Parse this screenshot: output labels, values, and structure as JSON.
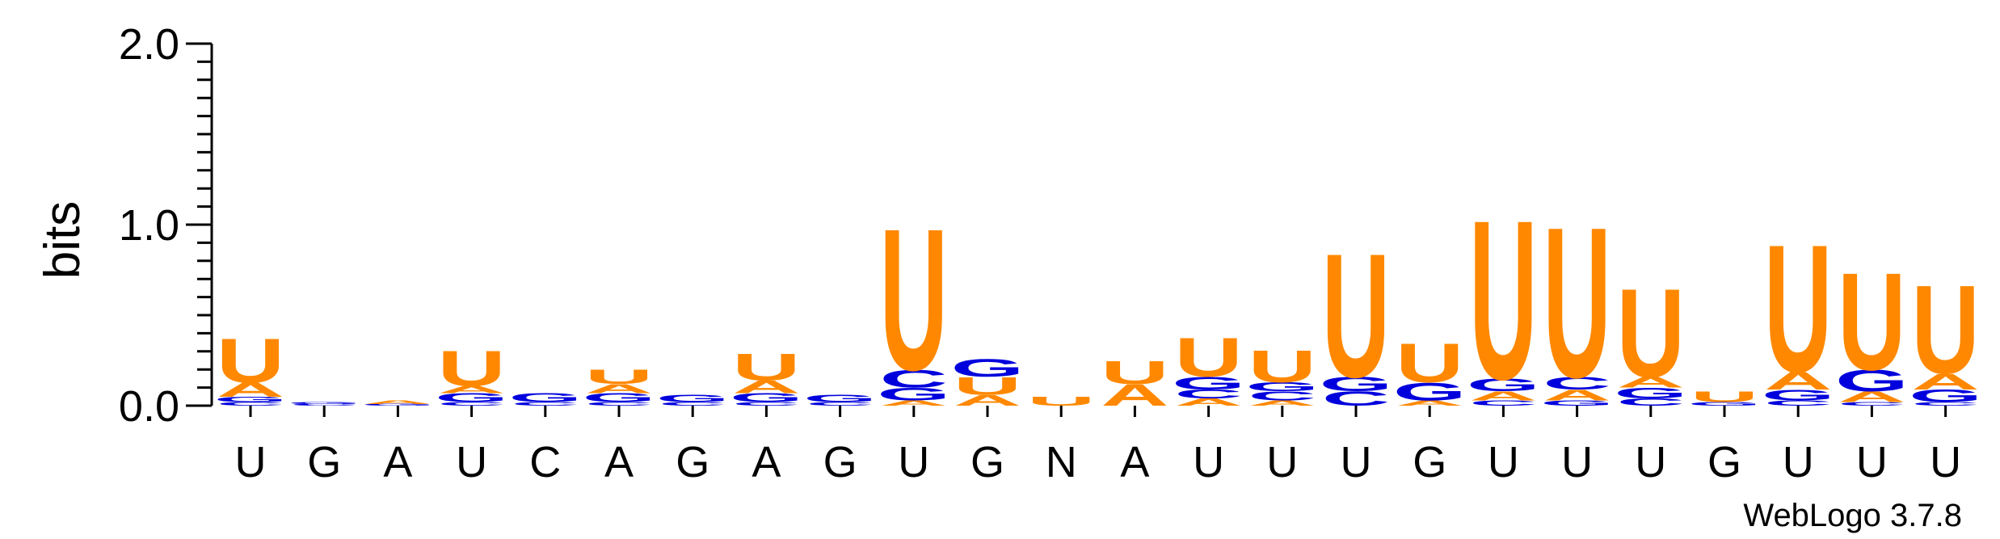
{
  "chart_data": {
    "type": "sequence-logo",
    "ylabel": "bits",
    "ylim": [
      0,
      2
    ],
    "yticks": [
      "0.0",
      "1.0",
      "2.0"
    ],
    "footer": "WebLogo 3.7.8",
    "colors": {
      "U": "#ff8800",
      "A": "#ff8800",
      "G": "#0000dd",
      "C": "#0000dd",
      "N": "#ff8800"
    },
    "positions": [
      {
        "label": "U",
        "stack": [
          [
            "C",
            0.02
          ],
          [
            "G",
            0.03
          ],
          [
            "A",
            0.08
          ],
          [
            "U",
            0.25
          ]
        ]
      },
      {
        "label": "G",
        "stack": [
          [
            "C",
            0.01
          ],
          [
            "G",
            0.01
          ]
        ]
      },
      {
        "label": "A",
        "stack": [
          [
            "G",
            0.01
          ],
          [
            "A",
            0.02
          ]
        ]
      },
      {
        "label": "U",
        "stack": [
          [
            "C",
            0.02
          ],
          [
            "G",
            0.05
          ],
          [
            "A",
            0.04
          ],
          [
            "U",
            0.2
          ]
        ]
      },
      {
        "label": "C",
        "stack": [
          [
            "C",
            0.02
          ],
          [
            "G",
            0.05
          ]
        ]
      },
      {
        "label": "A",
        "stack": [
          [
            "C",
            0.02
          ],
          [
            "G",
            0.05
          ],
          [
            "A",
            0.05
          ],
          [
            "U",
            0.08
          ]
        ]
      },
      {
        "label": "G",
        "stack": [
          [
            "C",
            0.02
          ],
          [
            "G",
            0.04
          ]
        ]
      },
      {
        "label": "A",
        "stack": [
          [
            "C",
            0.02
          ],
          [
            "G",
            0.05
          ],
          [
            "A",
            0.07
          ],
          [
            "U",
            0.15
          ]
        ]
      },
      {
        "label": "G",
        "stack": [
          [
            "C",
            0.02
          ],
          [
            "G",
            0.04
          ]
        ]
      },
      {
        "label": "U",
        "stack": [
          [
            "A",
            0.03
          ],
          [
            "G",
            0.07
          ],
          [
            "C",
            0.1
          ],
          [
            "U",
            0.8
          ]
        ]
      },
      {
        "label": "G",
        "stack": [
          [
            "A",
            0.06
          ],
          [
            "U",
            0.1
          ],
          [
            "G",
            0.1
          ]
        ]
      },
      {
        "label": "N",
        "stack": [
          [
            "U",
            0.05
          ]
        ]
      },
      {
        "label": "A",
        "stack": [
          [
            "A",
            0.12
          ],
          [
            "U",
            0.13
          ]
        ]
      },
      {
        "label": "U",
        "stack": [
          [
            "A",
            0.04
          ],
          [
            "C",
            0.05
          ],
          [
            "G",
            0.07
          ],
          [
            "U",
            0.22
          ]
        ]
      },
      {
        "label": "U",
        "stack": [
          [
            "A",
            0.03
          ],
          [
            "C",
            0.05
          ],
          [
            "G",
            0.05
          ],
          [
            "U",
            0.18
          ]
        ]
      },
      {
        "label": "U",
        "stack": [
          [
            "C",
            0.08
          ],
          [
            "G",
            0.08
          ],
          [
            "U",
            0.7
          ]
        ]
      },
      {
        "label": "G",
        "stack": [
          [
            "A",
            0.03
          ],
          [
            "G",
            0.1
          ],
          [
            "U",
            0.22
          ]
        ]
      },
      {
        "label": "U",
        "stack": [
          [
            "C",
            0.03
          ],
          [
            "A",
            0.05
          ],
          [
            "G",
            0.07
          ],
          [
            "U",
            0.9
          ]
        ]
      },
      {
        "label": "U",
        "stack": [
          [
            "G",
            0.03
          ],
          [
            "A",
            0.06
          ],
          [
            "C",
            0.07
          ],
          [
            "U",
            0.85
          ]
        ]
      },
      {
        "label": "U",
        "stack": [
          [
            "C",
            0.04
          ],
          [
            "G",
            0.06
          ],
          [
            "A",
            0.06
          ],
          [
            "U",
            0.5
          ]
        ]
      },
      {
        "label": "G",
        "stack": [
          [
            "G",
            0.02
          ],
          [
            "U",
            0.06
          ]
        ]
      },
      {
        "label": "U",
        "stack": [
          [
            "C",
            0.03
          ],
          [
            "G",
            0.06
          ],
          [
            "A",
            0.1
          ],
          [
            "U",
            0.72
          ]
        ]
      },
      {
        "label": "U",
        "stack": [
          [
            "C",
            0.02
          ],
          [
            "A",
            0.06
          ],
          [
            "G",
            0.12
          ],
          [
            "U",
            0.55
          ]
        ]
      },
      {
        "label": "U",
        "stack": [
          [
            "C",
            0.02
          ],
          [
            "G",
            0.07
          ],
          [
            "A",
            0.09
          ],
          [
            "U",
            0.5
          ]
        ]
      }
    ]
  }
}
